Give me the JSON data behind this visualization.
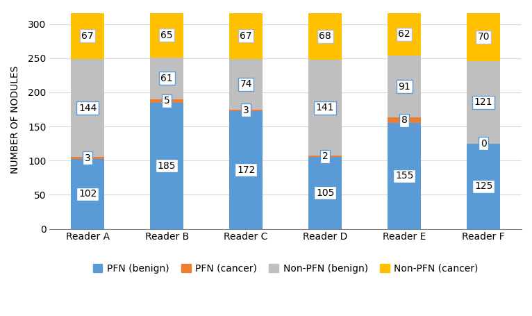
{
  "readers": [
    "Reader A",
    "Reader B",
    "Reader C",
    "Reader D",
    "Reader E",
    "Reader F"
  ],
  "pfn_benign": [
    102,
    185,
    172,
    105,
    155,
    125
  ],
  "pfn_cancer": [
    3,
    5,
    3,
    2,
    8,
    0
  ],
  "nonpfn_benign": [
    144,
    61,
    74,
    141,
    91,
    121
  ],
  "nonpfn_cancer": [
    67,
    65,
    67,
    68,
    62,
    70
  ],
  "color_pfn_benign": "#5b9bd5",
  "color_pfn_cancer": "#ed7d31",
  "color_nonpfn_benign": "#bfbfbf",
  "color_nonpfn_cancer": "#ffc000",
  "ylabel": "NUMBER OF NODULES",
  "ylim": [
    0,
    320
  ],
  "yticks": [
    0,
    50,
    100,
    150,
    200,
    250,
    300
  ],
  "legend_labels": [
    "PFN (benign)",
    "PFN (cancer)",
    "Non-PFN (benign)",
    "Non-PFN (cancer)"
  ],
  "bar_width": 0.42,
  "label_fontsize": 10,
  "tick_fontsize": 10,
  "legend_fontsize": 10,
  "label_box_edgecolor": "#5b9bd5",
  "label_box_edgecolor_top": "#c9a800"
}
